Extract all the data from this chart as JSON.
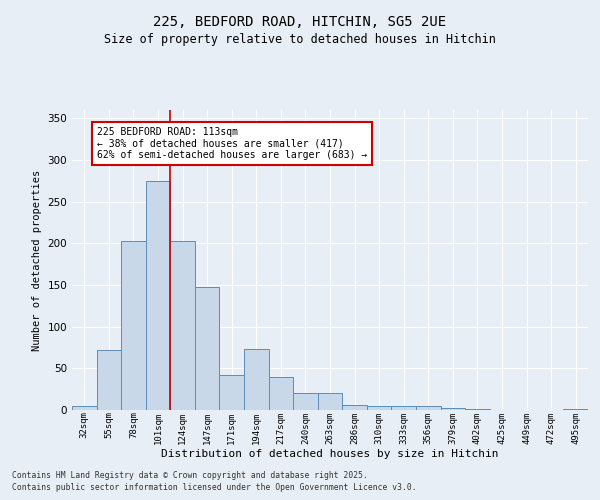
{
  "title_line1": "225, BEDFORD ROAD, HITCHIN, SG5 2UE",
  "title_line2": "Size of property relative to detached houses in Hitchin",
  "xlabel": "Distribution of detached houses by size in Hitchin",
  "ylabel": "Number of detached properties",
  "categories": [
    "32sqm",
    "55sqm",
    "78sqm",
    "101sqm",
    "124sqm",
    "147sqm",
    "171sqm",
    "194sqm",
    "217sqm",
    "240sqm",
    "263sqm",
    "286sqm",
    "310sqm",
    "333sqm",
    "356sqm",
    "379sqm",
    "402sqm",
    "425sqm",
    "449sqm",
    "472sqm",
    "495sqm"
  ],
  "values": [
    5,
    72,
    203,
    275,
    203,
    148,
    42,
    73,
    40,
    20,
    20,
    6,
    5,
    5,
    5,
    3,
    1,
    0,
    0,
    0,
    1
  ],
  "bar_color": "#c8d8e8",
  "bar_edge_color": "#5b8db8",
  "background_color": "#e8eef5",
  "grid_color": "#ffffff",
  "annotation_line1": "225 BEDFORD ROAD: 113sqm",
  "annotation_line2": "← 38% of detached houses are smaller (417)",
  "annotation_line3": "62% of semi-detached houses are larger (683) →",
  "annotation_box_color": "#ffffff",
  "annotation_box_edge": "#cc0000",
  "vline_x": 3.5,
  "vline_color": "#cc0000",
  "ylim": [
    0,
    360
  ],
  "yticks": [
    0,
    50,
    100,
    150,
    200,
    250,
    300,
    350
  ],
  "footer_line1": "Contains HM Land Registry data © Crown copyright and database right 2025.",
  "footer_line2": "Contains public sector information licensed under the Open Government Licence v3.0."
}
